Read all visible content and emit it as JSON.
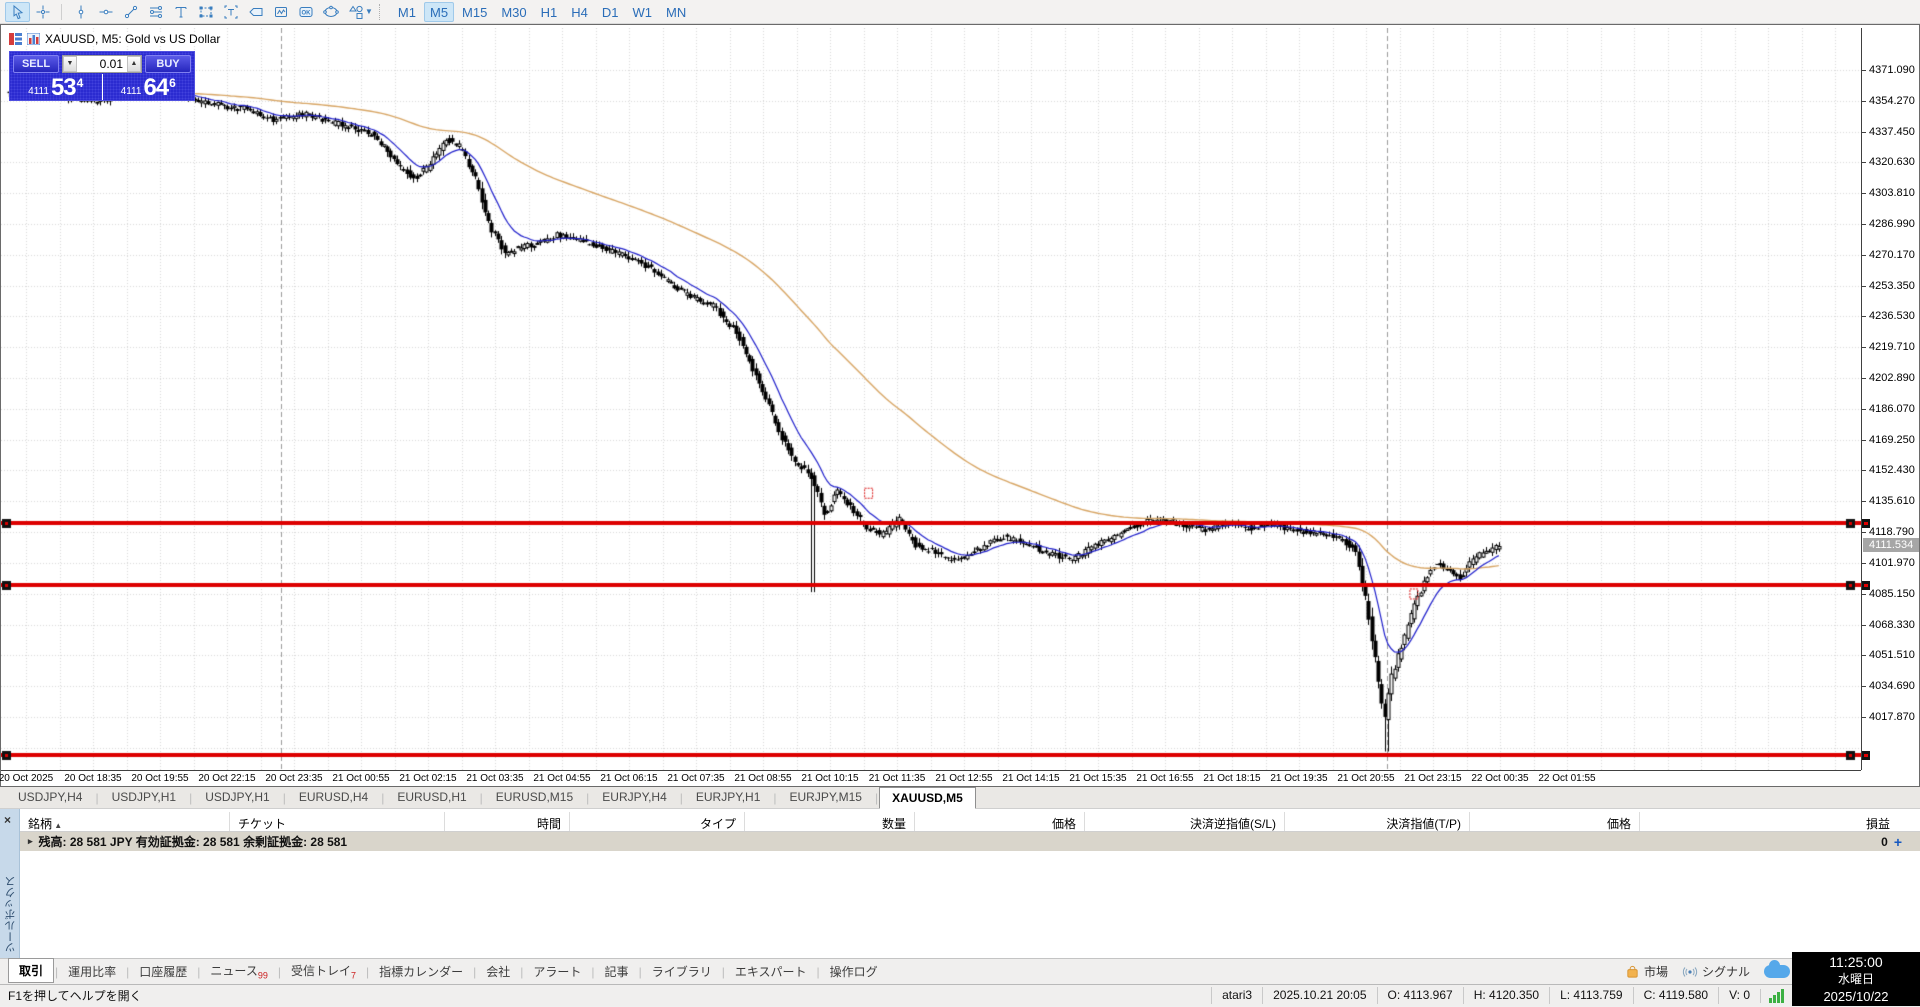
{
  "toolbar": {
    "timeframes": [
      "M1",
      "M5",
      "M15",
      "M30",
      "H1",
      "H4",
      "D1",
      "W1",
      "MN"
    ],
    "active_timeframe": "M5",
    "tools": [
      "cursor",
      "crosshair",
      "vertical-line",
      "horizontal-line",
      "trendline",
      "equidistant-channel",
      "text",
      "rectangle",
      "text-label",
      "price-label",
      "indicator-subwindow",
      "expert-ok",
      "ellipse",
      "shapes"
    ]
  },
  "chart": {
    "title": "XAUUSD, M5:  Gold vs US Dollar",
    "trade_panel": {
      "sell_label": "SELL",
      "buy_label": "BUY",
      "volume": "0.01",
      "bid_prefix": "4111",
      "bid_big": "53",
      "bid_sup": "4",
      "ask_prefix": "4111",
      "ask_big": "64",
      "ask_sup": "6"
    },
    "price_axis": {
      "labels": [
        "4371.090",
        "4354.270",
        "4337.450",
        "4320.630",
        "4303.810",
        "4286.990",
        "4270.170",
        "4253.350",
        "4236.530",
        "4219.710",
        "4202.890",
        "4186.070",
        "4169.250",
        "4152.430",
        "4135.610",
        "4118.790",
        "4101.970",
        "4085.150",
        "4068.330",
        "4051.510",
        "4034.690",
        "4017.870"
      ],
      "current_price": "4111.534"
    },
    "time_axis": {
      "labels": [
        "20 Oct 2025",
        "20 Oct 18:35",
        "20 Oct 19:55",
        "20 Oct 22:15",
        "20 Oct 23:35",
        "21 Oct 00:55",
        "21 Oct 02:15",
        "21 Oct 03:35",
        "21 Oct 04:55",
        "21 Oct 06:15",
        "21 Oct 07:35",
        "21 Oct 08:55",
        "21 Oct 10:15",
        "21 Oct 11:35",
        "21 Oct 12:55",
        "21 Oct 14:15",
        "21 Oct 15:35",
        "21 Oct 16:55",
        "21 Oct 18:15",
        "21 Oct 19:35",
        "21 Oct 20:55",
        "21 Oct 23:15",
        "22 Oct 00:35",
        "22 Oct 01:55"
      ]
    },
    "chart_data": {
      "type": "candlestick",
      "symbol": "XAUUSD",
      "period": "M5",
      "price_max": 4394.0,
      "price_min": 3988.9,
      "grid_price_top": 4371.09,
      "grid_step": 16.82,
      "candle_count": 458,
      "bull_color": "#ffffff",
      "bear_color": "#000000",
      "ma_fast": {
        "period": 12,
        "color": "#2020cc"
      },
      "ma_slow": {
        "period": 90,
        "color": "#d8a665"
      },
      "red_line_color": "#dd0000",
      "red_lines": [
        4123.5,
        4090.0,
        3997.0
      ],
      "separators_x": [
        280,
        1386
      ],
      "spike_lows": [
        [
          0.54,
          4086
        ],
        [
          0.925,
          3999
        ]
      ],
      "markers": [
        [
          0.577,
          4140
        ],
        [
          0.943,
          4085
        ]
      ],
      "anchors": [
        [
          0,
          4359
        ],
        [
          0.02,
          4362
        ],
        [
          0.04,
          4356
        ],
        [
          0.06,
          4354
        ],
        [
          0.08,
          4358
        ],
        [
          0.1,
          4363
        ],
        [
          0.12,
          4357
        ],
        [
          0.14,
          4352
        ],
        [
          0.16,
          4350
        ],
        [
          0.18,
          4344
        ],
        [
          0.2,
          4347
        ],
        [
          0.215,
          4343
        ],
        [
          0.23,
          4340
        ],
        [
          0.245,
          4336
        ],
        [
          0.255,
          4328
        ],
        [
          0.265,
          4317
        ],
        [
          0.275,
          4312
        ],
        [
          0.285,
          4320
        ],
        [
          0.295,
          4334
        ],
        [
          0.305,
          4329
        ],
        [
          0.315,
          4312
        ],
        [
          0.325,
          4285
        ],
        [
          0.335,
          4271
        ],
        [
          0.35,
          4275
        ],
        [
          0.37,
          4281
        ],
        [
          0.39,
          4277
        ],
        [
          0.41,
          4271
        ],
        [
          0.43,
          4264
        ],
        [
          0.445,
          4255
        ],
        [
          0.46,
          4247
        ],
        [
          0.475,
          4242
        ],
        [
          0.49,
          4228
        ],
        [
          0.5,
          4210
        ],
        [
          0.51,
          4192
        ],
        [
          0.52,
          4171
        ],
        [
          0.53,
          4157
        ],
        [
          0.54,
          4150
        ],
        [
          0.55,
          4128
        ],
        [
          0.558,
          4142
        ],
        [
          0.568,
          4131
        ],
        [
          0.578,
          4121
        ],
        [
          0.588,
          4117
        ],
        [
          0.6,
          4126
        ],
        [
          0.61,
          4112
        ],
        [
          0.625,
          4107
        ],
        [
          0.64,
          4103
        ],
        [
          0.655,
          4111
        ],
        [
          0.67,
          4116
        ],
        [
          0.685,
          4113
        ],
        [
          0.7,
          4107
        ],
        [
          0.715,
          4104
        ],
        [
          0.73,
          4111
        ],
        [
          0.745,
          4117
        ],
        [
          0.76,
          4123
        ],
        [
          0.775,
          4126
        ],
        [
          0.79,
          4122
        ],
        [
          0.805,
          4120
        ],
        [
          0.82,
          4124
        ],
        [
          0.835,
          4121
        ],
        [
          0.85,
          4123
        ],
        [
          0.865,
          4120
        ],
        [
          0.88,
          4118
        ],
        [
          0.895,
          4115
        ],
        [
          0.905,
          4110
        ],
        [
          0.912,
          4085
        ],
        [
          0.919,
          4050
        ],
        [
          0.925,
          4015
        ],
        [
          0.93,
          4040
        ],
        [
          0.938,
          4060
        ],
        [
          0.946,
          4080
        ],
        [
          0.953,
          4093
        ],
        [
          0.96,
          4103
        ],
        [
          0.968,
          4097
        ],
        [
          0.976,
          4094
        ],
        [
          0.984,
          4103
        ],
        [
          0.992,
          4108
        ],
        [
          1,
          4110
        ]
      ]
    }
  },
  "chart_tabs": {
    "items": [
      "USDJPY,H4",
      "USDJPY,H1",
      "USDJPY,H1",
      "EURUSD,H4",
      "EURUSD,H1",
      "EURUSD,M15",
      "EURJPY,H4",
      "EURJPY,H1",
      "EURJPY,M15",
      "XAUUSD,M5"
    ],
    "active": "XAUUSD,M5"
  },
  "toolbox": {
    "vertical_label": "ツールボックス",
    "close_label": "×",
    "columns": [
      "銘柄",
      "チケット",
      "時間",
      "タイプ",
      "数量",
      "価格",
      "決済逆指値(S/L)",
      "決済指値(T/P)",
      "価格",
      "損益"
    ],
    "balance_text": "残高: 28 581 JPY  有効証拠金: 28 581  余剰証拠金: 28 581",
    "orders_count": "0",
    "add_label": "+",
    "tabs": [
      {
        "label": "取引",
        "count": ""
      },
      {
        "label": "運用比率",
        "count": ""
      },
      {
        "label": "口座履歴",
        "count": ""
      },
      {
        "label": "ニュース",
        "count": "99"
      },
      {
        "label": "受信トレイ",
        "count": "7"
      },
      {
        "label": "指標カレンダー",
        "count": ""
      },
      {
        "label": "会社",
        "count": ""
      },
      {
        "label": "アラート",
        "count": ""
      },
      {
        "label": "記事",
        "count": ""
      },
      {
        "label": "ライブラリ",
        "count": ""
      },
      {
        "label": "エキスパート",
        "count": ""
      },
      {
        "label": "操作ログ",
        "count": ""
      }
    ],
    "active_tab": "取引",
    "market_label": "市場",
    "signal_label": "シグナル"
  },
  "clock": {
    "time": "11:25:00",
    "weekday": "水曜日",
    "date": "2025/10/22"
  },
  "status_bar": {
    "help": "F1を押してヘルプを開く",
    "account": "atari3",
    "datetime": "2025.10.21 20:05",
    "open": "O: 4113.967",
    "high": "H: 4120.350",
    "low": "L: 4113.759",
    "close": "C: 4119.580",
    "volume": "V: 0"
  }
}
